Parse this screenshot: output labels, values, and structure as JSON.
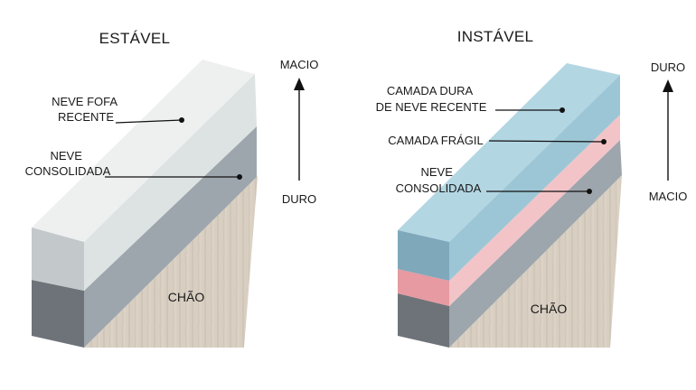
{
  "stable": {
    "title": "ESTÁVEL",
    "layers": [
      {
        "label_lines": [
          "NEVE FOFA",
          "RECENTE"
        ],
        "color": "#dde2e3"
      },
      {
        "label_lines": [
          "NEVE",
          "CONSOLIDADA"
        ],
        "color": "#9ea6ad"
      }
    ],
    "ground_label": "CHÃO",
    "scale": {
      "top": "MACIO",
      "bottom": "DURO"
    }
  },
  "unstable": {
    "title": "INSTÁVEL",
    "layers": [
      {
        "label_lines": [
          "CAMADA DURA",
          "DE NEVE RECENTE"
        ],
        "color": "#9cc6d5"
      },
      {
        "label_lines": [
          "CAMADA FRÁGIL"
        ],
        "color": "#f2c4c8"
      },
      {
        "label_lines": [
          "NEVE",
          "CONSOLIDADA"
        ],
        "color": "#9ea6ad"
      }
    ],
    "ground_label": "CHÃO",
    "scale": {
      "top": "DURO",
      "bottom": "MACIO"
    }
  },
  "colors": {
    "ground": "#d6ccbf",
    "ground_shade": "#c4b8a8",
    "text": "#1a1a1a"
  }
}
